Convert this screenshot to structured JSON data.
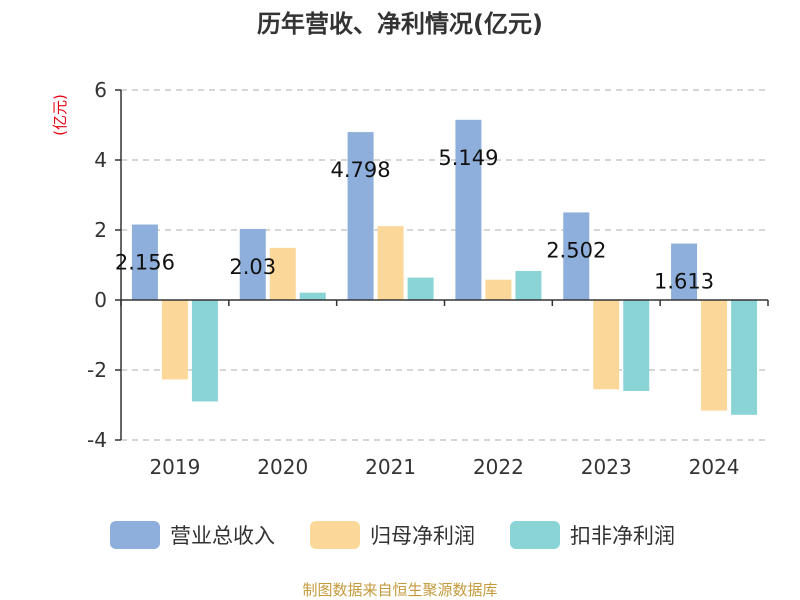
{
  "chart_data": {
    "type": "bar",
    "title": "历年营收、净利情况(亿元)",
    "ylabel": "(亿元)",
    "categories": [
      "2019",
      "2020",
      "2021",
      "2022",
      "2023",
      "2024"
    ],
    "series": [
      {
        "name": "营业总收入",
        "color": "#8eaedb",
        "values": [
          2.156,
          2.03,
          4.798,
          5.149,
          2.502,
          1.613
        ]
      },
      {
        "name": "归母净利润",
        "color": "#fcd79a",
        "values": [
          -2.27,
          1.49,
          2.11,
          0.58,
          -2.55,
          -3.16
        ]
      },
      {
        "name": "扣非净利润",
        "color": "#8ad4d6",
        "values": [
          -2.9,
          0.21,
          0.64,
          0.83,
          -2.6,
          -3.28
        ]
      }
    ],
    "data_labels": [
      "2.156",
      "2.03",
      "4.798",
      "5.149",
      "2.502",
      "1.613"
    ],
    "yticks": [
      "6",
      "4",
      "2",
      "0",
      "-2",
      "-4"
    ],
    "ylim": [
      -4,
      6
    ],
    "grid": true,
    "legend_position": "bottom"
  },
  "source_text": "制图数据来自恒生聚源数据库"
}
